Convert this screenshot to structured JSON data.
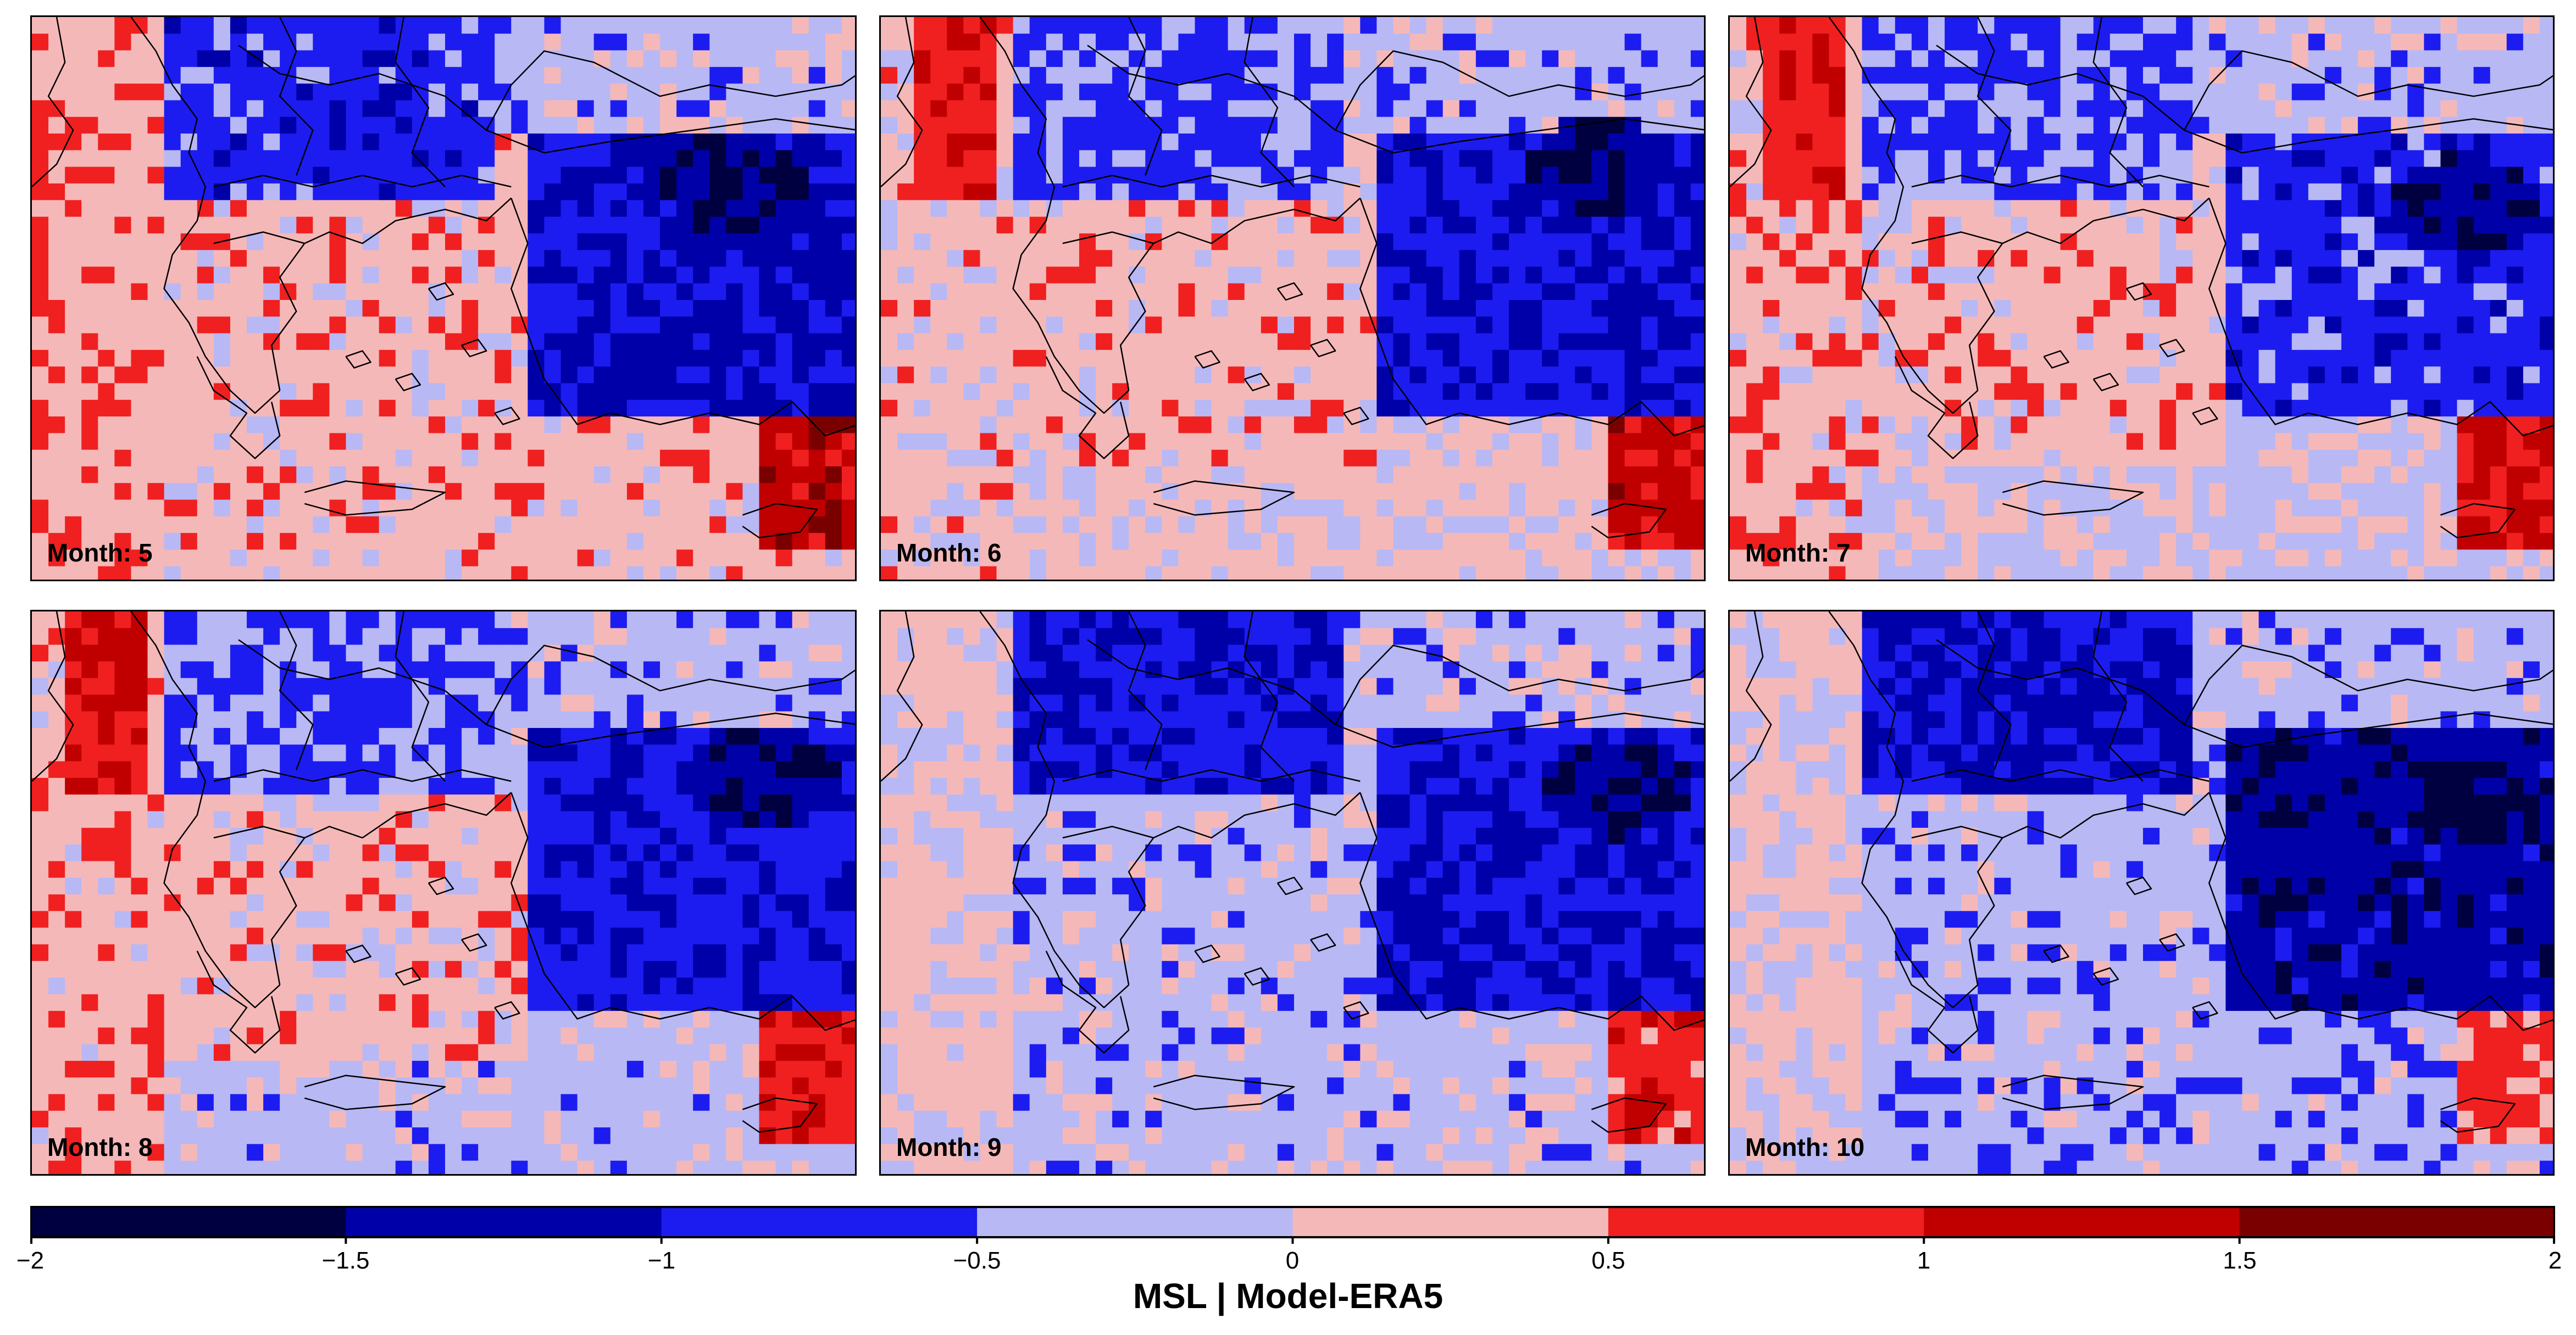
{
  "panels": [
    {
      "label": "Month: 5"
    },
    {
      "label": "Month: 6"
    },
    {
      "label": "Month: 7"
    },
    {
      "label": "Month: 8"
    },
    {
      "label": "Month: 9"
    },
    {
      "label": "Month: 10"
    }
  ],
  "colorbar": {
    "ticks": [
      "−2",
      "−1.5",
      "−1",
      "−0.5",
      "0",
      "0.5",
      "1",
      "1.5",
      "2"
    ],
    "colors": [
      "#000040",
      "#0000a8",
      "#1c1cf0",
      "#b8b8f5",
      "#f5b8b8",
      "#f02020",
      "#c00000",
      "#7a0000"
    ],
    "title": "MSL | Model-ERA5"
  }
}
